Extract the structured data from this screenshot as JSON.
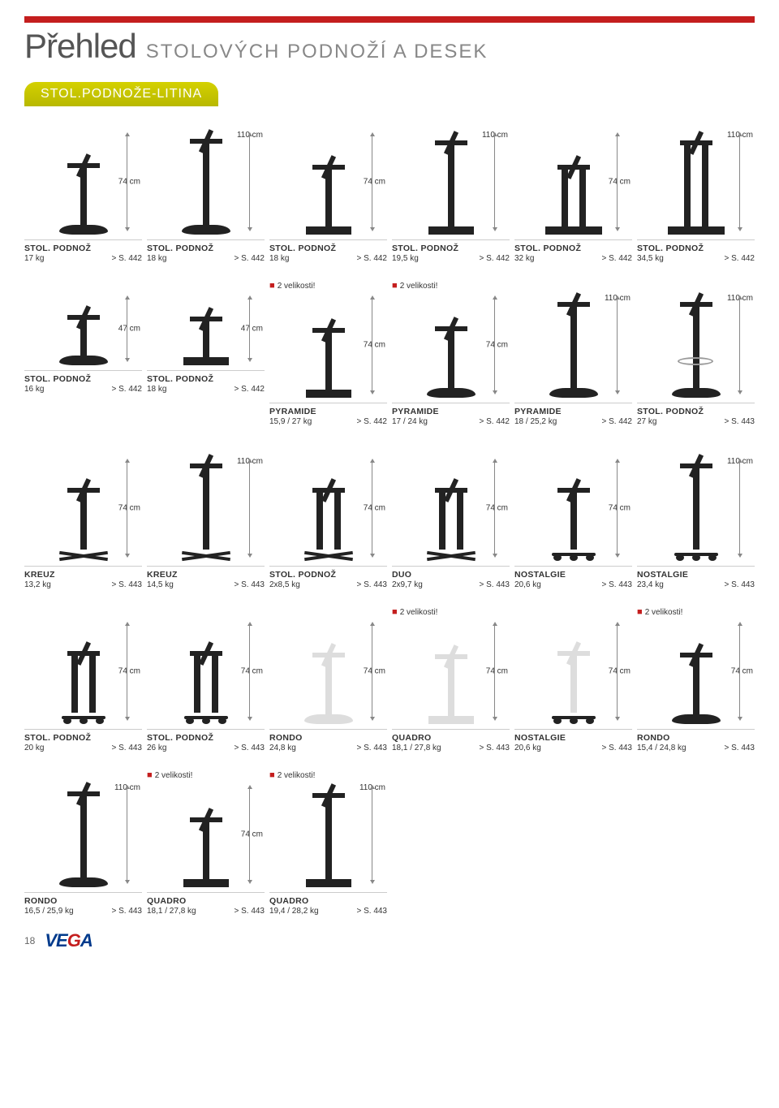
{
  "page": {
    "title_main": "Přehled",
    "title_sub": "STOLOVÝCH PODNOŽÍ A DESEK",
    "section_label": "STOL.PODNOŽE-LITINA",
    "page_number": "18",
    "logo_text": "VEGA"
  },
  "badges": {
    "two_sizes": "2 velikosti!"
  },
  "colors": {
    "accent_red": "#c41e1e",
    "section_bg": "#c8c800",
    "text": "#333333",
    "rule": "#cccccc"
  },
  "rows": [
    {
      "cells": [
        {
          "height": "74 cm",
          "name": "STOL. PODNOŽ",
          "weight": "17 kg",
          "ref": "> S. 442",
          "kind": "round",
          "h": "med"
        },
        {
          "height": "110 cm",
          "name": "STOL. PODNOŽ",
          "weight": "18 kg",
          "ref": "> S. 442",
          "kind": "round",
          "h": "tall"
        },
        {
          "height": "74 cm",
          "name": "STOL. PODNOŽ",
          "weight": "18 kg",
          "ref": "> S. 442",
          "kind": "square",
          "h": "med"
        },
        {
          "height": "110 cm",
          "name": "STOL. PODNOŽ",
          "weight": "19,5 kg",
          "ref": "> S. 442",
          "kind": "square",
          "h": "tall"
        },
        {
          "height": "74 cm",
          "name": "STOL. PODNOŽ",
          "weight": "32 kg",
          "ref": "> S. 442",
          "kind": "rect-double",
          "h": "med"
        },
        {
          "height": "110 cm",
          "name": "STOL. PODNOŽ",
          "weight": "34,5 kg",
          "ref": "> S. 442",
          "kind": "rect-double",
          "h": "tall"
        }
      ]
    },
    {
      "cells": [
        {
          "height": "47 cm",
          "name": "STOL. PODNOŽ",
          "weight": "16 kg",
          "ref": "> S. 442",
          "kind": "round",
          "h": "short"
        },
        {
          "height": "47 cm",
          "name": "STOL. PODNOŽ",
          "weight": "18 kg",
          "ref": "> S. 442",
          "kind": "square",
          "h": "short"
        },
        {
          "height": "74 cm",
          "name": "PYRAMIDE",
          "weight": "15,9 / 27 kg",
          "ref": "> S. 442",
          "kind": "square",
          "h": "med",
          "badge": "two_sizes"
        },
        {
          "height": "74 cm",
          "name": "PYRAMIDE",
          "weight": "17 / 24 kg",
          "ref": "> S. 442",
          "kind": "round",
          "h": "med",
          "badge": "two_sizes"
        },
        {
          "height": "110 cm",
          "name": "PYRAMIDE",
          "weight": "18 / 25,2 kg",
          "ref": "> S. 442",
          "kind": "round",
          "h": "tall"
        },
        {
          "height": "110 cm",
          "name": "STOL. PODNOŽ",
          "weight": "27 kg",
          "ref": "> S. 443",
          "kind": "round-ring",
          "h": "tall"
        }
      ]
    },
    {
      "cells": [
        {
          "height": "74 cm",
          "name": "KREUZ",
          "weight": "13,2 kg",
          "ref": "> S. 443",
          "kind": "cross",
          "h": "med"
        },
        {
          "height": "110 cm",
          "name": "KREUZ",
          "weight": "14,5 kg",
          "ref": "> S. 443",
          "kind": "cross",
          "h": "tall"
        },
        {
          "height": "74 cm",
          "name": "STOL. PODNOŽ",
          "weight": "2x8,5 kg",
          "ref": "> S. 443",
          "kind": "cross-double",
          "h": "med"
        },
        {
          "height": "74 cm",
          "name": "DUO",
          "weight": "2x9,7 kg",
          "ref": "> S. 443",
          "kind": "cross-double",
          "h": "med"
        },
        {
          "height": "74 cm",
          "name": "NOSTALGIE",
          "weight": "20,6 kg",
          "ref": "> S. 443",
          "kind": "ornate",
          "h": "med"
        },
        {
          "height": "110 cm",
          "name": "NOSTALGIE",
          "weight": "23,4 kg",
          "ref": "> S. 443",
          "kind": "ornate",
          "h": "tall"
        }
      ]
    },
    {
      "cells": [
        {
          "height": "74 cm",
          "name": "STOL. PODNOŽ",
          "weight": "20 kg",
          "ref": "> S. 443",
          "kind": "ornate-double",
          "h": "med"
        },
        {
          "height": "74 cm",
          "name": "STOL. PODNOŽ",
          "weight": "26 kg",
          "ref": "> S. 443",
          "kind": "ornate-double",
          "h": "med"
        },
        {
          "height": "74 cm",
          "name": "RONDO",
          "weight": "24,8 kg",
          "ref": "> S. 443",
          "kind": "round",
          "h": "med",
          "white": true
        },
        {
          "height": "74 cm",
          "name": "QUADRO",
          "weight": "18,1 / 27,8 kg",
          "ref": "> S. 443",
          "kind": "square",
          "h": "med",
          "white": true,
          "badge": "two_sizes"
        },
        {
          "height": "74 cm",
          "name": "NOSTALGIE",
          "weight": "20,6 kg",
          "ref": "> S. 443",
          "kind": "ornate",
          "h": "med",
          "white": true
        },
        {
          "height": "74 cm",
          "name": "RONDO",
          "weight": "15,4 / 24,8 kg",
          "ref": "> S. 443",
          "kind": "round",
          "h": "med",
          "badge": "two_sizes"
        }
      ]
    },
    {
      "cells": [
        {
          "height": "110 cm",
          "name": "RONDO",
          "weight": "16,5 / 25,9 kg",
          "ref": "> S. 443",
          "kind": "round",
          "h": "tall"
        },
        {
          "height": "74 cm",
          "name": "QUADRO",
          "weight": "18,1 / 27,8 kg",
          "ref": "> S. 443",
          "kind": "square",
          "h": "med",
          "badge": "two_sizes"
        },
        {
          "height": "110 cm",
          "name": "QUADRO",
          "weight": "19,4 / 28,2 kg",
          "ref": "> S. 443",
          "kind": "square",
          "h": "tall",
          "badge": "two_sizes"
        },
        {
          "empty": true
        },
        {
          "empty": true
        },
        {
          "empty": true
        }
      ]
    }
  ]
}
